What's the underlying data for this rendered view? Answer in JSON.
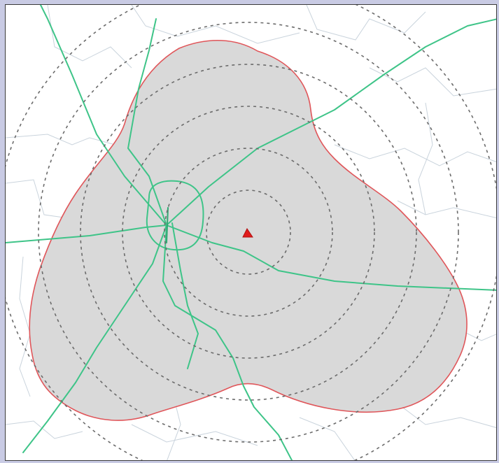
{
  "map": {
    "type": "broadcast-coverage-contour",
    "colors": {
      "background": "#c9cbe4",
      "land": "#ffffff",
      "coverage_fill": "#d9d9d9",
      "coverage_outline": "#e0565a",
      "highways": "#3ec488",
      "county_lines": "#c9d3dc",
      "range_rings": "#6b6b6b",
      "transmitter": "#e01b1b"
    },
    "range_ring_count": 6,
    "transmitter_icon": "red-triangle-icon"
  }
}
